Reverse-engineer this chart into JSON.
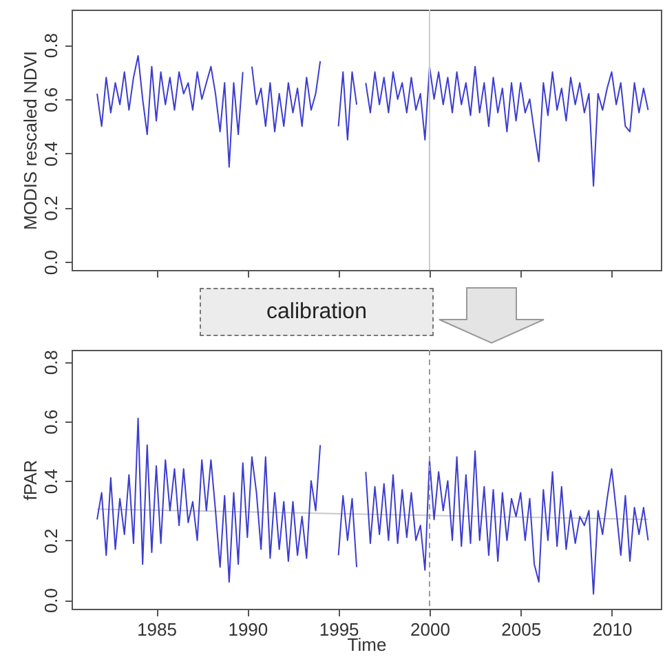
{
  "chart_data": [
    {
      "type": "line",
      "ylabel": "MODIS rescaled NDVI",
      "annotations": [
        "calibration"
      ],
      "xlim": [
        1980.35,
        2012.7
      ],
      "ylim": [
        -0.03,
        0.93
      ],
      "xticks": [
        1985,
        1990,
        1995,
        2000,
        2005,
        2010
      ],
      "yticks": [
        {
          "value": 0,
          "label": "0.0"
        },
        {
          "value": 0.2,
          "label": "0.2"
        },
        {
          "value": 0.4,
          "label": "0.4"
        },
        {
          "value": 0.6,
          "label": "0.6"
        },
        {
          "value": 0.8,
          "label": "0.8"
        }
      ],
      "tick_labels": "y",
      "x": [
        1981.75,
        1982,
        1982.25,
        1982.5,
        1982.75,
        1983,
        1983.25,
        1983.5,
        1983.75,
        1984,
        1984.25,
        1984.5,
        1984.75,
        1985,
        1985.25,
        1985.5,
        1985.75,
        1986,
        1986.25,
        1986.5,
        1986.75,
        1987,
        1987.25,
        1987.5,
        1987.75,
        1988,
        1988.25,
        1988.5,
        1988.75,
        1989,
        1989.25,
        1989.5,
        1989.75,
        1990,
        1990.25,
        1990.5,
        1990.75,
        1991,
        1991.25,
        1991.5,
        1991.75,
        1992,
        1992.25,
        1992.5,
        1992.75,
        1993,
        1993.25,
        1993.5,
        1993.75,
        1994,
        1994.25,
        1994.5,
        1994.75,
        1995,
        1995.25,
        1995.5,
        1995.75,
        1996,
        1996.25,
        1996.5,
        1996.75,
        1997,
        1997.25,
        1997.5,
        1997.75,
        1998,
        1998.25,
        1998.5,
        1998.75,
        1999,
        1999.25,
        1999.5,
        1999.75,
        2000,
        2000.25,
        2000.5,
        2000.75,
        2001,
        2001.25,
        2001.5,
        2001.75,
        2002,
        2002.25,
        2002.5,
        2002.75,
        2003,
        2003.25,
        2003.5,
        2003.75,
        2004,
        2004.25,
        2004.5,
        2004.75,
        2005,
        2005.25,
        2005.5,
        2005.75,
        2006,
        2006.25,
        2006.5,
        2006.75,
        2007,
        2007.25,
        2007.5,
        2007.75,
        2008,
        2008.25,
        2008.5,
        2008.75,
        2009,
        2009.25,
        2009.5,
        2009.75,
        2010,
        2010.25,
        2010.5,
        2010.75,
        2011,
        2011.25,
        2011.5,
        2011.75,
        2012
      ],
      "series": [
        {
          "color": "#3c3cd0",
          "values": [
            0.62,
            0.5,
            0.68,
            0.55,
            0.66,
            0.58,
            0.7,
            0.56,
            0.68,
            0.76,
            0.6,
            0.47,
            0.72,
            0.52,
            0.7,
            0.58,
            0.68,
            0.56,
            0.7,
            0.62,
            0.66,
            0.56,
            0.7,
            0.6,
            0.66,
            0.72,
            0.62,
            0.48,
            0.66,
            0.35,
            0.66,
            0.47,
            0.7,
            null,
            0.72,
            0.58,
            0.64,
            0.5,
            0.66,
            0.48,
            0.62,
            0.5,
            0.66,
            0.55,
            0.64,
            0.5,
            0.68,
            0.56,
            0.62,
            0.74,
            null,
            null,
            null,
            0.5,
            0.7,
            0.45,
            0.7,
            0.58,
            null,
            0.66,
            0.55,
            0.7,
            0.58,
            0.68,
            0.55,
            0.7,
            0.6,
            0.66,
            0.55,
            0.68,
            0.56,
            0.62,
            0.45,
            0.72,
            0.6,
            0.7,
            0.58,
            0.68,
            0.55,
            0.7,
            0.58,
            0.66,
            0.54,
            0.72,
            0.55,
            0.66,
            0.5,
            0.68,
            0.55,
            0.64,
            0.48,
            0.66,
            0.52,
            0.66,
            0.55,
            0.6,
            0.48,
            0.37,
            0.66,
            0.54,
            0.7,
            0.56,
            0.64,
            0.52,
            0.68,
            0.58,
            0.66,
            0.55,
            0.62,
            0.28,
            0.62,
            0.56,
            0.64,
            0.7,
            0.58,
            0.66,
            0.5,
            0.48,
            0.66,
            0.55,
            0.64,
            0.56
          ]
        }
      ],
      "ref_lines": [
        {
          "axis": "x",
          "value": 2000,
          "color": "#cccccc",
          "line_style": "solid"
        }
      ]
    },
    {
      "type": "line",
      "xlabel": "Time",
      "ylabel": "fPAR",
      "xlim": [
        1980.35,
        2012.7
      ],
      "ylim": [
        -0.03,
        0.84
      ],
      "xticks": [
        1985,
        1990,
        1995,
        2000,
        2005,
        2010
      ],
      "yticks": [
        {
          "value": 0,
          "label": "0.0"
        },
        {
          "value": 0.2,
          "label": "0.2"
        },
        {
          "value": 0.4,
          "label": "0.4"
        },
        {
          "value": 0.6,
          "label": "0.6"
        },
        {
          "value": 0.8,
          "label": "0.8"
        }
      ],
      "x": [
        1981.75,
        1982,
        1982.25,
        1982.5,
        1982.75,
        1983,
        1983.25,
        1983.5,
        1983.75,
        1984,
        1984.25,
        1984.5,
        1984.75,
        1985,
        1985.25,
        1985.5,
        1985.75,
        1986,
        1986.25,
        1986.5,
        1986.75,
        1987,
        1987.25,
        1987.5,
        1987.75,
        1988,
        1988.25,
        1988.5,
        1988.75,
        1989,
        1989.25,
        1989.5,
        1989.75,
        1990,
        1990.25,
        1990.5,
        1990.75,
        1991,
        1991.25,
        1991.5,
        1991.75,
        1992,
        1992.25,
        1992.5,
        1992.75,
        1993,
        1993.25,
        1993.5,
        1993.75,
        1994,
        1994.25,
        1994.5,
        1994.75,
        1995,
        1995.25,
        1995.5,
        1995.75,
        1996,
        1996.25,
        1996.5,
        1996.75,
        1997,
        1997.25,
        1997.5,
        1997.75,
        1998,
        1998.25,
        1998.5,
        1998.75,
        1999,
        1999.25,
        1999.5,
        1999.75,
        2000,
        2000.25,
        2000.5,
        2000.75,
        2001,
        2001.25,
        2001.5,
        2001.75,
        2002,
        2002.25,
        2002.5,
        2002.75,
        2003,
        2003.25,
        2003.5,
        2003.75,
        2004,
        2004.25,
        2004.5,
        2004.75,
        2005,
        2005.25,
        2005.5,
        2005.75,
        2006,
        2006.25,
        2006.5,
        2006.75,
        2007,
        2007.25,
        2007.5,
        2007.75,
        2008,
        2008.25,
        2008.5,
        2008.75,
        2009,
        2009.25,
        2009.5,
        2009.75,
        2010,
        2010.25,
        2010.5,
        2010.75,
        2011,
        2011.25,
        2011.5,
        2011.75,
        2012
      ],
      "series": [
        {
          "color": "#c8c8c8",
          "x": [
            1981.75,
            2012
          ],
          "values": [
            0.305,
            0.27
          ]
        },
        {
          "color": "#3c3cd0",
          "values": [
            0.27,
            0.36,
            0.15,
            0.41,
            0.17,
            0.34,
            0.22,
            0.42,
            0.19,
            0.61,
            0.12,
            0.52,
            0.16,
            0.45,
            0.19,
            0.47,
            0.3,
            0.44,
            0.25,
            0.44,
            0.26,
            0.33,
            0.2,
            0.47,
            0.3,
            0.47,
            0.3,
            0.11,
            0.35,
            0.06,
            0.36,
            0.12,
            0.46,
            0.21,
            0.48,
            0.36,
            0.17,
            0.48,
            0.14,
            0.36,
            0.17,
            0.33,
            0.13,
            0.33,
            0.15,
            0.28,
            0.14,
            0.4,
            0.3,
            0.52,
            null,
            null,
            null,
            0.15,
            0.35,
            0.2,
            0.34,
            0.11,
            null,
            0.43,
            0.19,
            0.38,
            0.22,
            0.39,
            0.2,
            0.42,
            0.19,
            0.37,
            0.21,
            0.36,
            0.2,
            0.25,
            0.1,
            0.47,
            0.27,
            0.43,
            0.3,
            0.4,
            0.2,
            0.48,
            0.18,
            0.42,
            0.19,
            0.5,
            0.2,
            0.38,
            0.15,
            0.37,
            0.13,
            0.36,
            0.2,
            0.34,
            0.28,
            0.36,
            0.2,
            0.34,
            0.12,
            0.06,
            0.37,
            0.2,
            0.43,
            0.18,
            0.38,
            0.17,
            0.3,
            0.19,
            0.28,
            0.25,
            0.3,
            0.02,
            0.3,
            0.22,
            0.34,
            0.44,
            0.3,
            0.15,
            0.35,
            0.13,
            0.31,
            0.22,
            0.31,
            0.2
          ]
        }
      ],
      "ref_lines": [
        {
          "axis": "x",
          "value": 2000,
          "color": "#999999",
          "line_style": "dashed"
        }
      ]
    }
  ]
}
